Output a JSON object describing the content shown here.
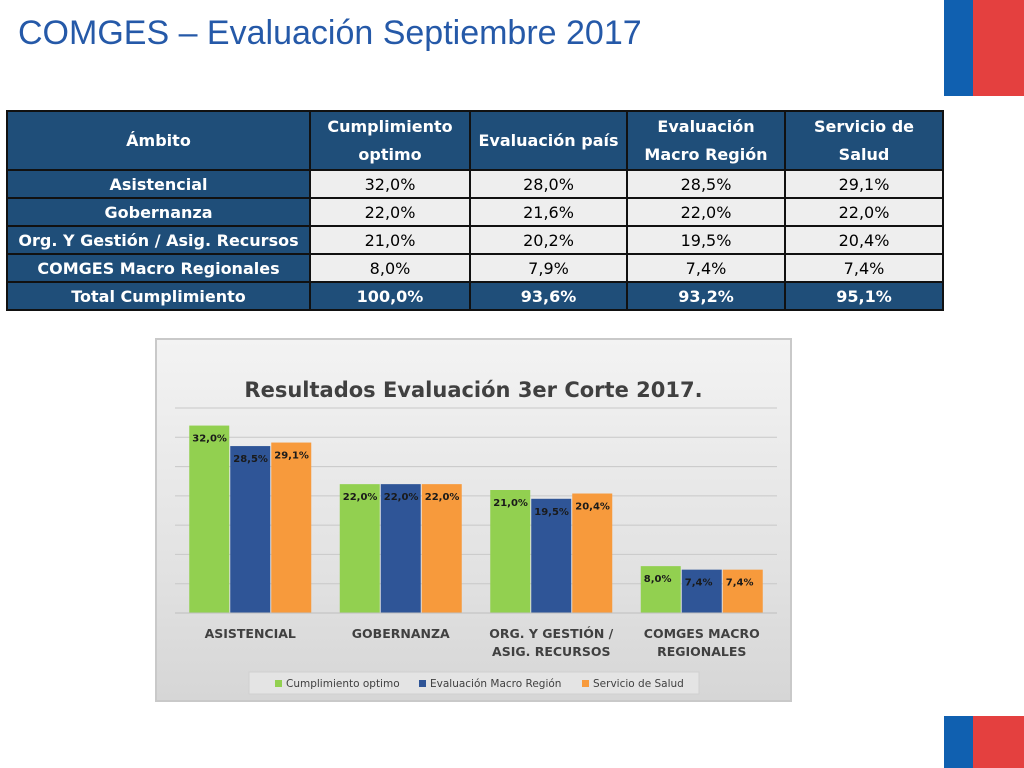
{
  "slide": {
    "title": "COMGES – Evaluación Septiembre 2017"
  },
  "table": {
    "headers": [
      "Ámbito",
      "Cumplimiento optimo",
      "Evaluación país",
      "Evaluación Macro Región",
      "Servicio de Salud"
    ],
    "rows": [
      {
        "ambito": "Asistencial",
        "values": [
          "32,0%",
          "28,0%",
          "28,5%",
          "29,1%"
        ]
      },
      {
        "ambito": "Gobernanza",
        "values": [
          "22,0%",
          "21,6%",
          "22,0%",
          "22,0%"
        ]
      },
      {
        "ambito": "Org. Y Gestión / Asig. Recursos",
        "values": [
          "21,0%",
          "20,2%",
          "19,5%",
          "20,4%"
        ]
      },
      {
        "ambito": "COMGES Macro Regionales",
        "values": [
          "8,0%",
          "7,9%",
          "7,4%",
          "7,4%"
        ]
      }
    ],
    "total": {
      "ambito": "Total Cumplimiento",
      "values": [
        "100,0%",
        "93,6%",
        "93,2%",
        "95,1%"
      ]
    }
  },
  "chart_data": {
    "type": "bar",
    "title": "Resultados Evaluación 3er Corte 2017.",
    "categories": [
      [
        "ASISTENCIAL"
      ],
      [
        "GOBERNANZA"
      ],
      [
        "ORG. Y GESTIÓN /",
        "ASIG. RECURSOS"
      ],
      [
        "COMGES MACRO",
        "REGIONALES"
      ]
    ],
    "series": [
      {
        "name": "Cumplimiento optimo",
        "color": "#92d050",
        "values": [
          32.0,
          22.0,
          21.0,
          8.0
        ],
        "labels": [
          "32,0%",
          "22,0%",
          "21,0%",
          "8,0%"
        ]
      },
      {
        "name": "Evaluación Macro Región",
        "color": "#2f5597",
        "values": [
          28.5,
          22.0,
          19.5,
          7.4
        ],
        "labels": [
          "28,5%",
          "22,0%",
          "19,5%",
          "7,4%"
        ]
      },
      {
        "name": "Servicio de Salud",
        "color": "#f79a3c",
        "values": [
          29.1,
          22.0,
          20.4,
          7.4
        ],
        "labels": [
          "29,1%",
          "22,0%",
          "20,4%",
          "7,4%"
        ]
      }
    ],
    "ylim": [
      0,
      35
    ],
    "grid": true,
    "legend": "bottom"
  }
}
